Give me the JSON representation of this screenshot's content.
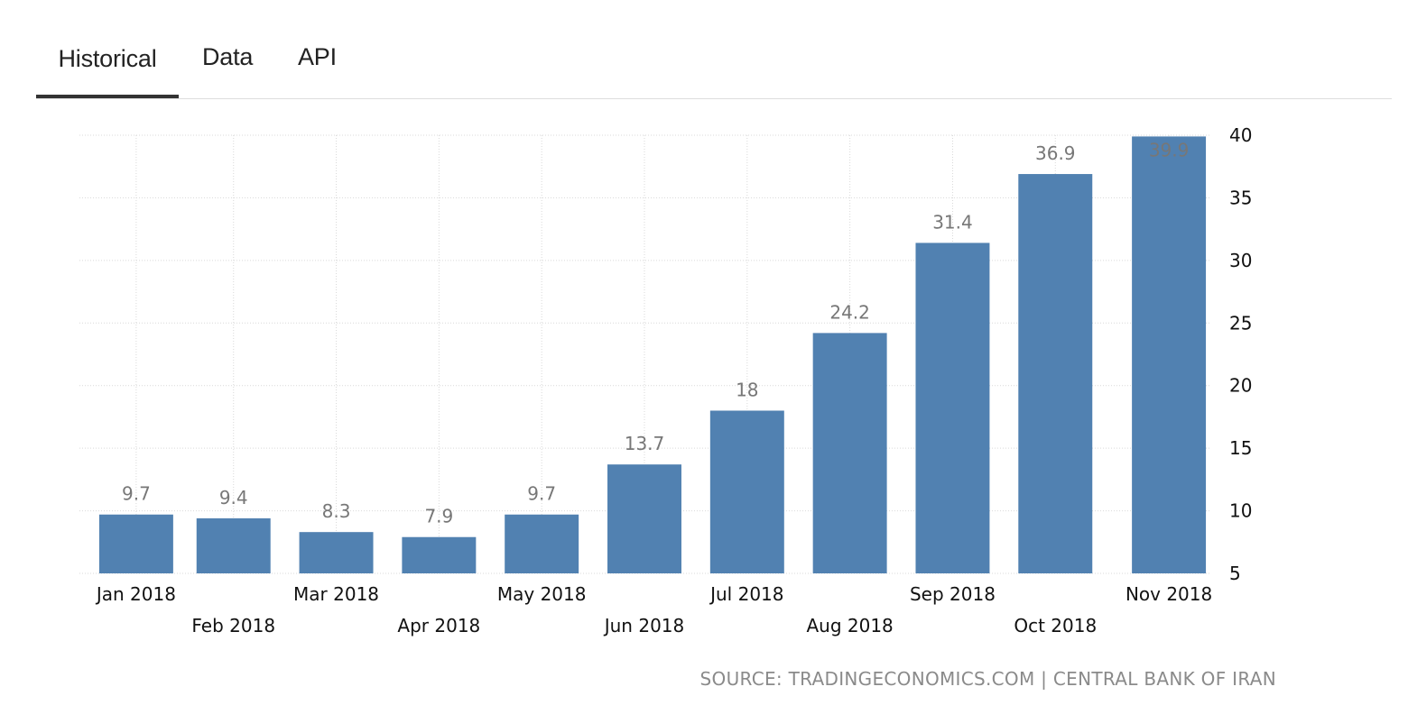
{
  "tabs": [
    {
      "label": "Historical",
      "active": true
    },
    {
      "label": "Data",
      "active": false
    },
    {
      "label": "API",
      "active": false
    }
  ],
  "source": "SOURCE: TRADINGECONOMICS.COM | CENTRAL BANK OF IRAN",
  "colors": {
    "bar": "#5181b1",
    "bar_label": "#777777",
    "tab_underline": "#333333"
  },
  "chart_data": {
    "type": "bar",
    "categories": [
      "Jan 2018",
      "Feb 2018",
      "Mar 2018",
      "Apr 2018",
      "May 2018",
      "Jun 2018",
      "Jul 2018",
      "Aug 2018",
      "Sep 2018",
      "Oct 2018",
      "Nov 2018"
    ],
    "values": [
      9.7,
      9.4,
      8.3,
      7.9,
      9.7,
      13.7,
      18,
      24.2,
      31.4,
      36.9,
      39.9
    ],
    "data_labels": [
      "9.7",
      "9.4",
      "8.3",
      "7.9",
      "9.7",
      "13.7",
      "18",
      "24.2",
      "31.4",
      "36.9",
      "39.9"
    ],
    "title": "",
    "xlabel": "",
    "ylabel": "",
    "ylim": [
      5,
      40
    ],
    "yticks": [
      5,
      10,
      15,
      20,
      25,
      30,
      35,
      40
    ],
    "y_axis_side": "right",
    "grid": true
  }
}
